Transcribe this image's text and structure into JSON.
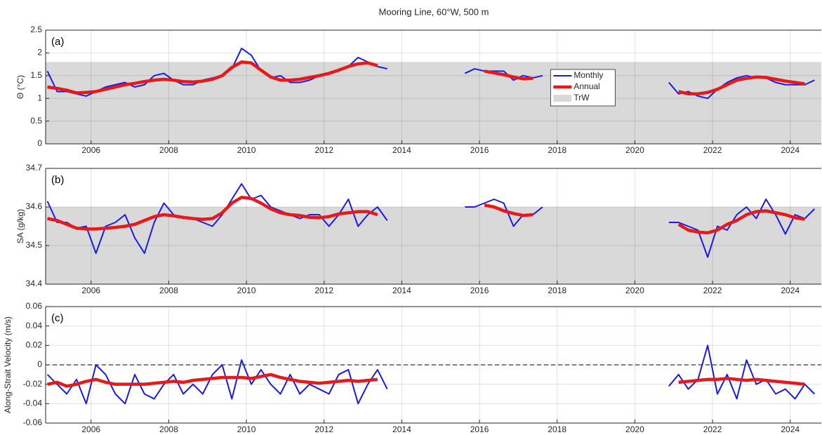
{
  "title": "Mooring Line, 60°W, 500 m",
  "chart_data": [
    {
      "type": "line",
      "panel_label": "(a)",
      "ylabel": "Θ (°C)",
      "xlim": [
        2004.83,
        2024.8
      ],
      "xticks": [
        2006,
        2008,
        2010,
        2012,
        2014,
        2016,
        2018,
        2020,
        2022,
        2024
      ],
      "ylim": [
        0,
        2.5
      ],
      "yticks": [
        0,
        0.5,
        1,
        1.5,
        2,
        2.5
      ],
      "grid": true,
      "band": [
        0,
        1.8
      ],
      "band_name": "TrW",
      "band_color": "#d9d9d9",
      "legend": "center",
      "x": [
        2004.875,
        2005.125,
        2005.375,
        2005.625,
        2005.875,
        2006.125,
        2006.375,
        2006.625,
        2006.875,
        2007.125,
        2007.375,
        2007.625,
        2007.875,
        2008.125,
        2008.375,
        2008.625,
        2008.875,
        2009.125,
        2009.375,
        2009.625,
        2009.875,
        2010.125,
        2010.375,
        2010.625,
        2010.875,
        2011.125,
        2011.375,
        2011.625,
        2011.875,
        2012.125,
        2012.375,
        2012.625,
        2012.875,
        2013.125,
        2013.375,
        2013.625,
        2013.875,
        2014.125,
        2014.375,
        2014.625,
        2014.875,
        2015.125,
        2015.375,
        2015.625,
        2015.875,
        2016.125,
        2016.375,
        2016.625,
        2016.875,
        2017.125,
        2017.375,
        2017.625,
        2017.875,
        2018.125,
        2018.375,
        2018.625,
        2018.875,
        2019.125,
        2019.375,
        2019.625,
        2019.875,
        2020.125,
        2020.375,
        2020.625,
        2020.875,
        2021.125,
        2021.375,
        2021.625,
        2021.875,
        2022.125,
        2022.375,
        2022.625,
        2022.875,
        2023.125,
        2023.375,
        2023.625,
        2023.875,
        2024.125,
        2024.375,
        2024.625
      ],
      "series": [
        {
          "name": "Monthly",
          "color": "#1a1aeb",
          "width": 2,
          "values": [
            1.6,
            1.15,
            1.15,
            1.1,
            1.05,
            1.15,
            1.25,
            1.3,
            1.35,
            1.25,
            1.3,
            1.5,
            1.55,
            1.4,
            1.3,
            1.3,
            1.4,
            1.45,
            1.5,
            1.65,
            2.1,
            1.95,
            1.6,
            1.45,
            1.5,
            1.35,
            1.35,
            1.4,
            1.5,
            1.55,
            1.6,
            1.7,
            1.9,
            1.8,
            1.7,
            1.65,
            null,
            null,
            null,
            null,
            null,
            null,
            null,
            1.55,
            1.65,
            1.6,
            1.6,
            1.6,
            1.4,
            1.5,
            1.45,
            1.5,
            null,
            null,
            null,
            null,
            null,
            null,
            null,
            null,
            null,
            null,
            null,
            null,
            1.35,
            1.1,
            1.15,
            1.05,
            1.0,
            1.2,
            1.35,
            1.45,
            1.5,
            1.45,
            1.45,
            1.35,
            1.3,
            1.3,
            1.3,
            1.4
          ]
        },
        {
          "name": "Annual",
          "color": "#e8191a",
          "width": 4.5,
          "values": [
            1.25,
            1.22,
            1.18,
            1.12,
            1.13,
            1.15,
            1.2,
            1.25,
            1.3,
            1.33,
            1.37,
            1.4,
            1.42,
            1.4,
            1.37,
            1.36,
            1.38,
            1.42,
            1.5,
            1.68,
            1.8,
            1.78,
            1.62,
            1.47,
            1.4,
            1.4,
            1.42,
            1.46,
            1.5,
            1.55,
            1.62,
            1.7,
            1.76,
            1.78,
            1.72,
            null,
            null,
            null,
            null,
            null,
            null,
            null,
            null,
            null,
            null,
            1.6,
            1.56,
            1.52,
            1.47,
            1.43,
            1.44,
            null,
            null,
            null,
            null,
            null,
            null,
            null,
            null,
            null,
            null,
            null,
            null,
            null,
            null,
            1.15,
            1.1,
            1.1,
            1.13,
            1.2,
            1.3,
            1.4,
            1.44,
            1.47,
            1.46,
            1.42,
            1.38,
            1.35,
            1.32,
            null
          ]
        }
      ]
    },
    {
      "type": "line",
      "panel_label": "(b)",
      "ylabel": "SA (g/kg)",
      "xlim": [
        2004.83,
        2024.8
      ],
      "xticks": [
        2006,
        2008,
        2010,
        2012,
        2014,
        2016,
        2018,
        2020,
        2022,
        2024
      ],
      "ylim": [
        34.4,
        34.7
      ],
      "yticks": [
        34.4,
        34.5,
        34.6,
        34.7
      ],
      "grid": true,
      "band": [
        34.4,
        34.6
      ],
      "band_color": "#d9d9d9",
      "x": [
        2004.875,
        2005.125,
        2005.375,
        2005.625,
        2005.875,
        2006.125,
        2006.375,
        2006.625,
        2006.875,
        2007.125,
        2007.375,
        2007.625,
        2007.875,
        2008.125,
        2008.375,
        2008.625,
        2008.875,
        2009.125,
        2009.375,
        2009.625,
        2009.875,
        2010.125,
        2010.375,
        2010.625,
        2010.875,
        2011.125,
        2011.375,
        2011.625,
        2011.875,
        2012.125,
        2012.375,
        2012.625,
        2012.875,
        2013.125,
        2013.375,
        2013.625,
        2013.875,
        2014.125,
        2014.375,
        2014.625,
        2014.875,
        2015.125,
        2015.375,
        2015.625,
        2015.875,
        2016.125,
        2016.375,
        2016.625,
        2016.875,
        2017.125,
        2017.375,
        2017.625,
        2017.875,
        2018.125,
        2018.375,
        2018.625,
        2018.875,
        2019.125,
        2019.375,
        2019.625,
        2019.875,
        2020.125,
        2020.375,
        2020.625,
        2020.875,
        2021.125,
        2021.375,
        2021.625,
        2021.875,
        2022.125,
        2022.375,
        2022.625,
        2022.875,
        2023.125,
        2023.375,
        2023.625,
        2023.875,
        2024.125,
        2024.375,
        2024.625
      ],
      "series": [
        {
          "color": "#1a1aeb",
          "width": 2,
          "values": [
            34.615,
            34.56,
            34.56,
            34.545,
            34.55,
            34.48,
            34.55,
            34.56,
            34.58,
            34.52,
            34.48,
            34.56,
            34.61,
            34.58,
            34.57,
            34.57,
            34.56,
            34.55,
            34.58,
            34.62,
            34.66,
            34.62,
            34.63,
            34.6,
            34.59,
            34.58,
            34.57,
            34.58,
            34.58,
            34.55,
            34.58,
            34.62,
            34.55,
            34.58,
            34.6,
            34.565,
            null,
            null,
            null,
            null,
            null,
            null,
            null,
            34.6,
            34.6,
            34.61,
            34.62,
            34.61,
            34.55,
            34.58,
            34.58,
            34.6,
            null,
            null,
            null,
            null,
            null,
            null,
            null,
            null,
            null,
            null,
            null,
            null,
            34.56,
            34.56,
            34.55,
            34.54,
            34.47,
            34.55,
            34.54,
            34.58,
            34.6,
            34.57,
            34.62,
            34.58,
            34.53,
            34.58,
            34.57,
            34.595
          ]
        },
        {
          "color": "#e8191a",
          "width": 4.5,
          "values": [
            34.57,
            34.565,
            34.555,
            34.545,
            34.543,
            34.543,
            34.545,
            34.547,
            34.55,
            34.555,
            34.565,
            34.575,
            34.58,
            34.577,
            34.573,
            34.57,
            34.568,
            34.57,
            34.585,
            34.61,
            34.625,
            34.622,
            34.61,
            34.595,
            34.585,
            34.58,
            34.578,
            34.573,
            34.572,
            34.575,
            34.582,
            34.585,
            34.588,
            34.588,
            34.58,
            null,
            null,
            null,
            null,
            null,
            null,
            null,
            null,
            null,
            null,
            34.605,
            34.6,
            34.59,
            34.583,
            34.578,
            34.58,
            null,
            null,
            null,
            null,
            null,
            null,
            null,
            null,
            null,
            null,
            null,
            null,
            null,
            null,
            34.555,
            34.54,
            34.535,
            34.533,
            34.54,
            34.555,
            34.565,
            34.58,
            34.588,
            34.59,
            34.585,
            34.58,
            34.572,
            34.568,
            null
          ]
        }
      ]
    },
    {
      "type": "line",
      "panel_label": "(c)",
      "ylabel": "Along-Strait Velocity (m/s)",
      "xlim": [
        2004.83,
        2024.8
      ],
      "xticks": [
        2006,
        2008,
        2010,
        2012,
        2014,
        2016,
        2018,
        2020,
        2022,
        2024
      ],
      "ylim": [
        -0.06,
        0.06
      ],
      "yticks": [
        -0.06,
        -0.04,
        -0.02,
        0,
        0.02,
        0.04,
        0.06
      ],
      "grid": true,
      "hline": 0,
      "x": [
        2004.875,
        2005.125,
        2005.375,
        2005.625,
        2005.875,
        2006.125,
        2006.375,
        2006.625,
        2006.875,
        2007.125,
        2007.375,
        2007.625,
        2007.875,
        2008.125,
        2008.375,
        2008.625,
        2008.875,
        2009.125,
        2009.375,
        2009.625,
        2009.875,
        2010.125,
        2010.375,
        2010.625,
        2010.875,
        2011.125,
        2011.375,
        2011.625,
        2011.875,
        2012.125,
        2012.375,
        2012.625,
        2012.875,
        2013.125,
        2013.375,
        2013.625,
        2013.875,
        2014.125,
        2014.375,
        2014.625,
        2014.875,
        2015.125,
        2015.375,
        2015.625,
        2015.875,
        2016.125,
        2016.375,
        2016.625,
        2016.875,
        2017.125,
        2017.375,
        2017.625,
        2017.875,
        2018.125,
        2018.375,
        2018.625,
        2018.875,
        2019.125,
        2019.375,
        2019.625,
        2019.875,
        2020.125,
        2020.375,
        2020.625,
        2020.875,
        2021.125,
        2021.375,
        2021.625,
        2021.875,
        2022.125,
        2022.375,
        2022.625,
        2022.875,
        2023.125,
        2023.375,
        2023.625,
        2023.875,
        2024.125,
        2024.375,
        2024.625
      ],
      "series": [
        {
          "color": "#1a1aeb",
          "width": 2,
          "values": [
            -0.01,
            -0.02,
            -0.03,
            -0.015,
            -0.04,
            0,
            -0.01,
            -0.03,
            -0.04,
            -0.01,
            -0.03,
            -0.035,
            -0.02,
            -0.01,
            -0.03,
            -0.02,
            -0.03,
            -0.01,
            0,
            -0.035,
            0.005,
            -0.02,
            -0.005,
            -0.02,
            -0.03,
            -0.01,
            -0.03,
            -0.02,
            -0.025,
            -0.03,
            -0.01,
            -0.005,
            -0.04,
            -0.02,
            -0.005,
            -0.025,
            null,
            null,
            null,
            null,
            null,
            null,
            null,
            null,
            null,
            null,
            null,
            null,
            null,
            null,
            null,
            null,
            null,
            null,
            null,
            null,
            null,
            null,
            null,
            null,
            null,
            null,
            null,
            null,
            -0.022,
            -0.01,
            -0.025,
            -0.015,
            0.02,
            -0.03,
            -0.01,
            -0.035,
            0.005,
            -0.02,
            -0.015,
            -0.03,
            -0.025,
            -0.035,
            -0.02,
            -0.03
          ]
        },
        {
          "color": "#e8191a",
          "width": 4.5,
          "values": [
            -0.02,
            -0.018,
            -0.022,
            -0.02,
            -0.017,
            -0.015,
            -0.018,
            -0.02,
            -0.02,
            -0.02,
            -0.02,
            -0.019,
            -0.018,
            -0.017,
            -0.018,
            -0.016,
            -0.015,
            -0.014,
            -0.013,
            -0.013,
            -0.013,
            -0.014,
            -0.012,
            -0.01,
            -0.013,
            -0.015,
            -0.017,
            -0.018,
            -0.019,
            -0.018,
            -0.017,
            -0.016,
            -0.017,
            -0.016,
            -0.015,
            null,
            null,
            null,
            null,
            null,
            null,
            null,
            null,
            null,
            null,
            null,
            null,
            null,
            null,
            null,
            null,
            null,
            null,
            null,
            null,
            null,
            null,
            null,
            null,
            null,
            null,
            null,
            null,
            null,
            null,
            -0.018,
            -0.017,
            -0.016,
            -0.015,
            -0.015,
            -0.014,
            -0.015,
            -0.016,
            -0.015,
            -0.016,
            -0.017,
            -0.018,
            -0.019,
            -0.02,
            null
          ]
        }
      ]
    }
  ]
}
